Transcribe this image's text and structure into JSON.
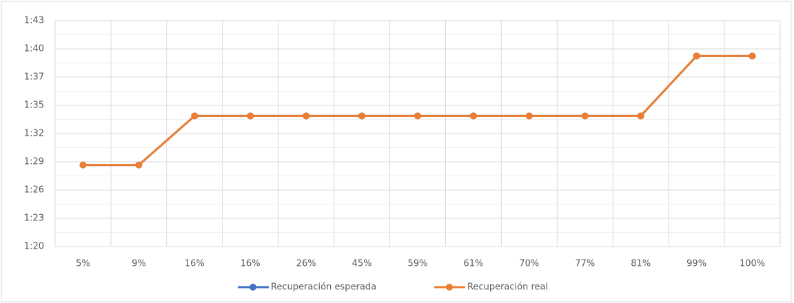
{
  "chart_data": {
    "type": "line",
    "categories": [
      "5%",
      "9%",
      "16%",
      "16%",
      "26%",
      "45%",
      "59%",
      "61%",
      "70%",
      "77%",
      "81%",
      "99%",
      "100%"
    ],
    "series": [
      {
        "name": "Recuperación esperada",
        "color": "#4472c4",
        "values": [
          88.3,
          88.3,
          93.3,
          93.3,
          93.3,
          93.3,
          93.3,
          93.3,
          93.3,
          93.3,
          93.3,
          99.4,
          99.4
        ]
      },
      {
        "name": "Recuperación real",
        "color": "#ed7d31",
        "values": [
          88.3,
          88.3,
          93.3,
          93.3,
          93.3,
          93.3,
          93.3,
          93.3,
          93.3,
          93.3,
          93.3,
          99.4,
          99.4
        ]
      }
    ],
    "ylim": [
      80,
      103
    ],
    "yticks": [
      {
        "value": 80,
        "label": "1:20"
      },
      {
        "value": 82.875,
        "label": "1:23"
      },
      {
        "value": 85.75,
        "label": "1:26"
      },
      {
        "value": 88.625,
        "label": "1:29"
      },
      {
        "value": 91.5,
        "label": "1:32"
      },
      {
        "value": 94.375,
        "label": "1:35"
      },
      {
        "value": 97.25,
        "label": "1:37"
      },
      {
        "value": 100.125,
        "label": "1:40"
      },
      {
        "value": 103,
        "label": "1:43"
      }
    ],
    "grid": true,
    "legend": "bottom"
  }
}
